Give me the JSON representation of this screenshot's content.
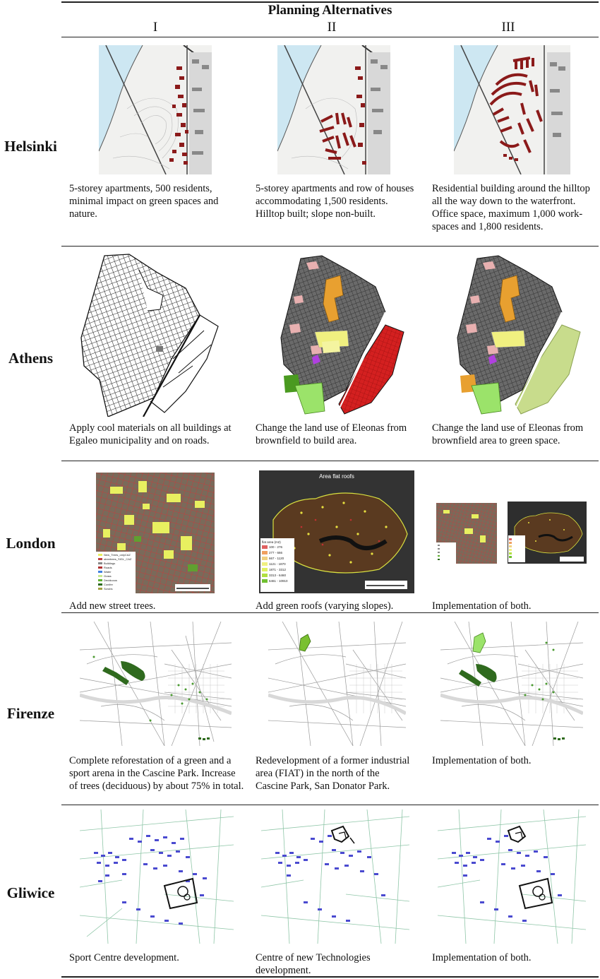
{
  "header": {
    "title": "Planning Alternatives",
    "columns": [
      "I",
      "II",
      "III"
    ]
  },
  "rows": [
    {
      "city": "Helsinki",
      "descriptions": [
        "5-storey apartments, 500 residents, minimal impact on green spaces and nature.",
        "5-storey apartments and row of houses accommodating 1,500 residents. Hilltop built; slope non-built.",
        "Residential building around the hilltop all the way down to the waterfront. Office space, maximum 1,000 work-spaces and 1,800 residents."
      ]
    },
    {
      "city": "Athens",
      "descriptions": [
        "Apply cool materials on all buildings at Egaleo municipality and on roads.",
        "Change the land use of Eleonas from brownfield to build area.",
        "Change the land use of Eleonas from brownfield area to green space."
      ]
    },
    {
      "city": "London",
      "descriptions": [
        "Add new street trees.",
        "Add green roofs (varying slopes).",
        "Implementation of both."
      ],
      "map_text": {
        "flat_roofs_title": "Area flat roofs",
        "legend_trees": [
          "New_Trees_onlyCAZ",
          "streetrees_SIGL_CAZ",
          "Buildings",
          "Roads",
          "Water",
          "Grass",
          "Deciduous",
          "Conifer",
          "Scrubs"
        ],
        "legend_roofs_title": "flat area (m2)",
        "legend_roofs": [
          "100 - 276",
          "277 - 666",
          "667 - 1120",
          "1121 - 1870",
          "1871 - 3312",
          "3313 - 6460",
          "6461 - 10910"
        ]
      }
    },
    {
      "city": "Firenze",
      "descriptions": [
        "Complete reforestation of a green and a sport arena in the Cascine Park. Increase of trees (deciduous) by about 75% in total.",
        "Redevelopment of a former industrial area (FIAT) in the north of the Cascine Park, San Donator Park.",
        "Implementation of both."
      ]
    },
    {
      "city": "Gliwice",
      "descriptions": [
        "Sport Centre development.",
        "Centre of new Technologies development.",
        "Implementation of both."
      ]
    }
  ],
  "colors": {
    "rule": "#222222",
    "helsinki_building": "#8b1a1a",
    "helsinki_water": "#cde7f2",
    "athens_orange": "#e8a030",
    "athens_red": "#d42020",
    "athens_lightgreen": "#c8dc8c",
    "athens_green": "#9be36a",
    "london_yellow": "#e8f060",
    "firenze_green": "#2f6a1e",
    "gliwice_blue": "#4a4ad0",
    "gliwice_road": "#8fc6a8"
  }
}
